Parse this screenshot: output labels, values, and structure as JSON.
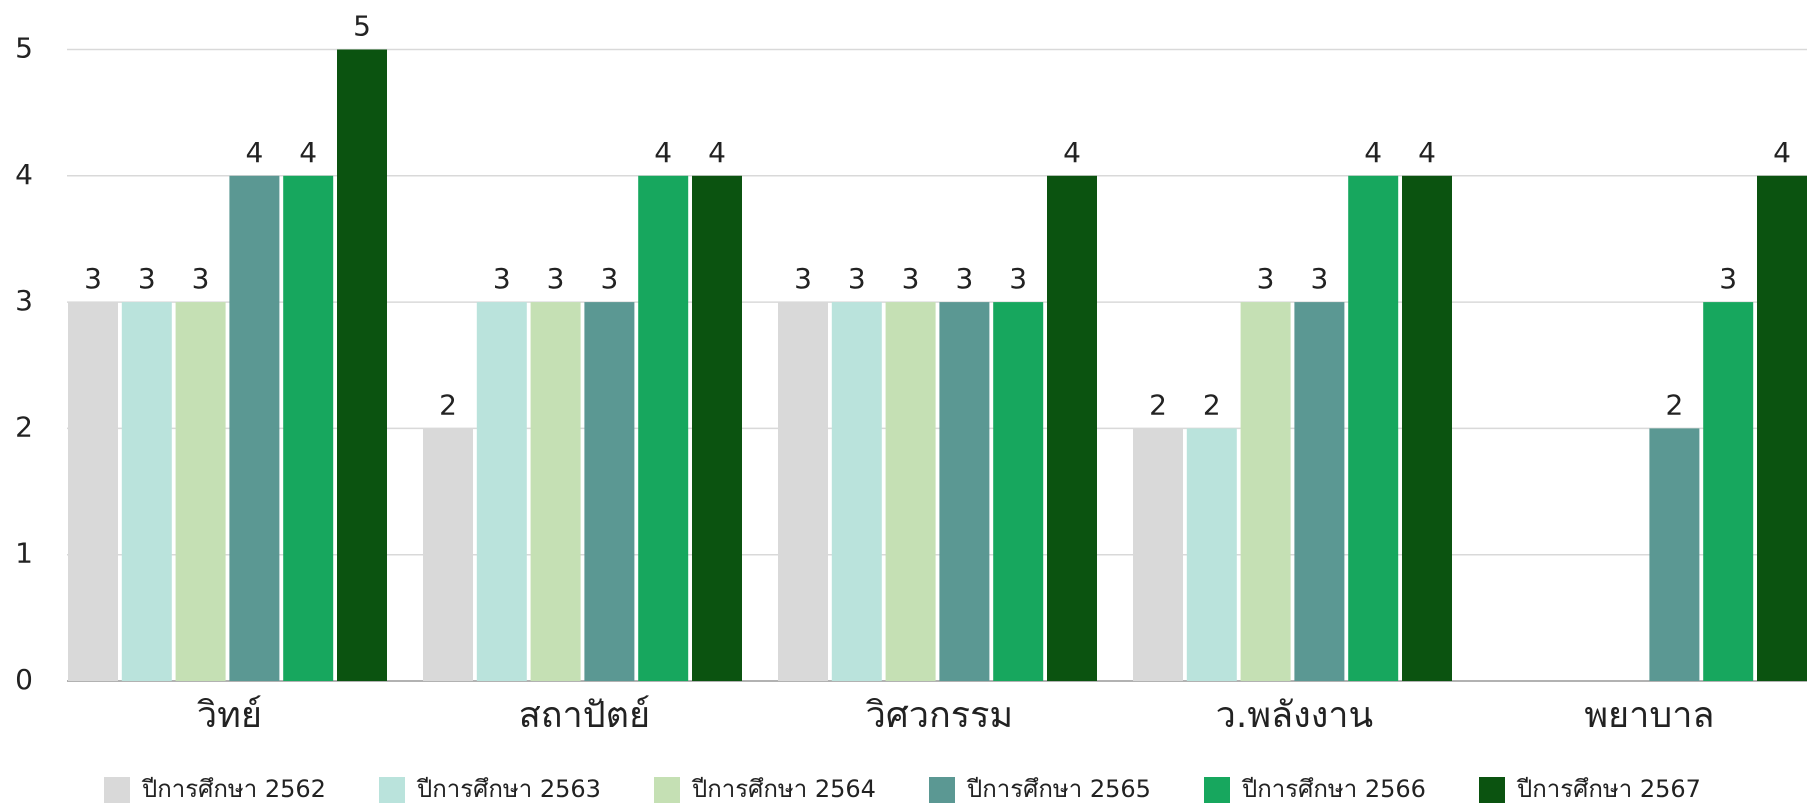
{
  "chart_data": {
    "type": "bar",
    "categories": [
      "วิทย์",
      "สถาปัตย์",
      "วิศวกรรม",
      "ว.พลังงาน",
      "พยาบาล"
    ],
    "series": [
      {
        "name": "ปีการศึกษา 2562",
        "color": "#d9d9d9",
        "values": [
          3,
          2,
          3,
          2,
          null
        ]
      },
      {
        "name": "ปีการศึกษา 2563",
        "color": "#bae3dc",
        "values": [
          3,
          3,
          3,
          2,
          null
        ]
      },
      {
        "name": "ปีการศึกษา 2564",
        "color": "#c5e0b4",
        "values": [
          3,
          3,
          3,
          3,
          null
        ]
      },
      {
        "name": "ปีการศึกษา 2565",
        "color": "#5b9893",
        "values": [
          4,
          3,
          3,
          3,
          2
        ]
      },
      {
        "name": "ปีการศึกษา 2566",
        "color": "#17a75e",
        "values": [
          4,
          4,
          3,
          4,
          3
        ]
      },
      {
        "name": "ปีการศึกษา 2567",
        "color": "#0b5310",
        "values": [
          5,
          4,
          4,
          4,
          4
        ]
      }
    ],
    "ylim": [
      0,
      5
    ],
    "yticks": [
      0,
      1,
      2,
      3,
      4,
      5
    ],
    "grid": true,
    "legend": "bottom",
    "data_labels": true
  }
}
